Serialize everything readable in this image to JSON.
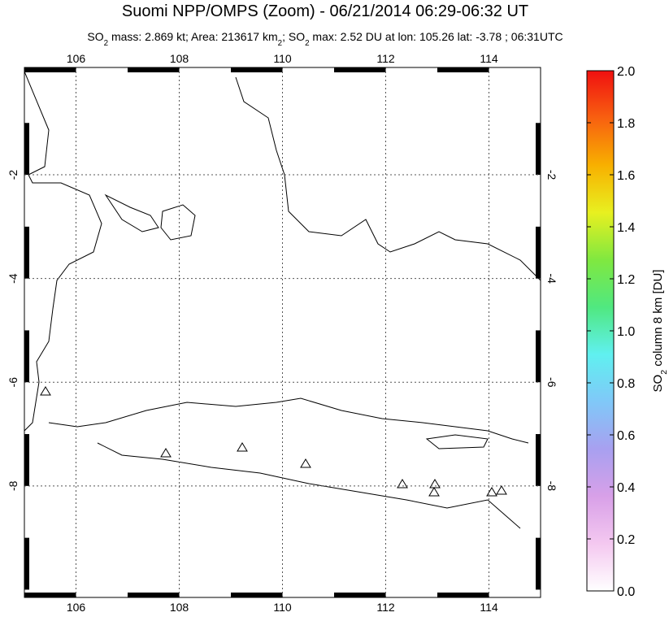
{
  "chart_data": {
    "type": "map",
    "title": "Suomi NPP/OMPS (Zoom) - 06/21/2014 06:29-06:32 UT",
    "subtitle_parts": [
      "SO",
      "2",
      " mass: 2.869 kt; Area: 213617 km",
      "2",
      "; SO",
      "2",
      " max: 2.52 DU at lon: 105.26 lat: -3.78 ; 06:31UTC"
    ],
    "xlim": [
      105,
      115
    ],
    "ylim": [
      -10.15,
      0.07
    ],
    "xticks": [
      106,
      108,
      110,
      112,
      114
    ],
    "yticks": [
      -2,
      -4,
      -6,
      -8
    ],
    "grid": true,
    "colorbar": {
      "label_parts": [
        "SO",
        "2",
        " column 8 km [DU]"
      ],
      "lim": [
        0,
        2
      ],
      "ticks": [
        {
          "value": 0,
          "label": "0.0"
        },
        {
          "value": 0.2,
          "label": "0.2"
        },
        {
          "value": 0.4,
          "label": "0.4"
        },
        {
          "value": 0.6,
          "label": "0.6"
        },
        {
          "value": 0.8,
          "label": "0.8"
        },
        {
          "value": 1,
          "label": "1.0"
        },
        {
          "value": 1.2,
          "label": "1.2"
        },
        {
          "value": 1.4,
          "label": "1.4"
        },
        {
          "value": 1.6,
          "label": "1.6"
        },
        {
          "value": 1.8,
          "label": "1.8"
        },
        {
          "value": 2,
          "label": "2.0"
        }
      ],
      "colors": [
        "#ffffff",
        "#f4c8f0",
        "#d8a0e8",
        "#a8a0f0",
        "#80c8f8",
        "#60f0f0",
        "#50e880",
        "#80e840",
        "#e8f020",
        "#f8b000",
        "#f86010",
        "#f01010"
      ]
    }
  }
}
